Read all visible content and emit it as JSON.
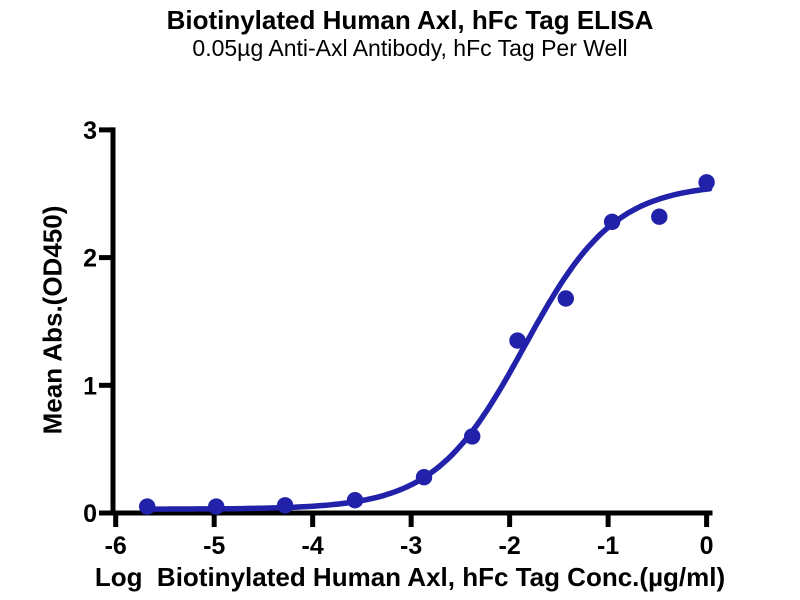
{
  "header": {
    "title": "Biotinylated Human Axl, hFc Tag ELISA",
    "subtitle": "0.05µg Anti-Axl Antibody, hFc Tag Per Well"
  },
  "colors": {
    "background": "#ffffff",
    "axis": "#000000",
    "series_blue": "#2121aa"
  },
  "chart_data": {
    "type": "scatter",
    "title": "Biotinylated Human Axl, hFc Tag ELISA",
    "subtitle": "0.05µg Anti-Axl Antibody, hFc Tag Per Well",
    "xlabel": "Log  Biotinylated Human Axl, hFc Tag Conc.(µg/ml)",
    "ylabel": "Mean Abs.(OD450)",
    "xlim": [
      -6,
      0
    ],
    "ylim": [
      0,
      3
    ],
    "x_ticks": [
      -6,
      -5,
      -4,
      -3,
      -2,
      -1,
      0
    ],
    "y_ticks": [
      0,
      1,
      2,
      3
    ],
    "grid": false,
    "legend": false,
    "axis_color": "#000000",
    "point_color": "#2121aa",
    "line_color": "#2121aa",
    "points": {
      "name": "Mean Abs.(OD450) vs log concentration",
      "x": [
        -5.68,
        -4.98,
        -4.28,
        -3.57,
        -2.87,
        -2.38,
        -1.92,
        -1.43,
        -0.96,
        -0.48,
        0.0
      ],
      "y": [
        0.05,
        0.05,
        0.06,
        0.1,
        0.28,
        0.6,
        1.35,
        1.68,
        2.28,
        2.32,
        2.59
      ]
    },
    "fit_curve": {
      "name": "4PL sigmoidal fit",
      "model": "4PL",
      "bottom": 0.03,
      "top": 2.58,
      "log_ec50": -1.85,
      "hill": 0.95,
      "x_range": [
        -5.7,
        0.03
      ]
    }
  }
}
